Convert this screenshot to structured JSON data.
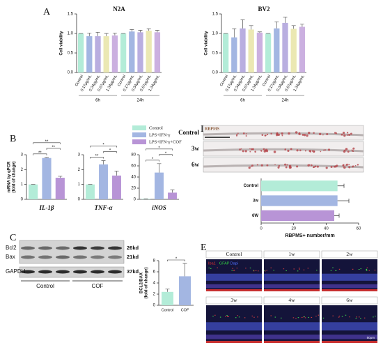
{
  "panels": [
    "A",
    "B",
    "C",
    "D",
    "E"
  ],
  "panel_b_legend": {
    "categories": [
      "Control",
      "LPS+IFN-γ",
      "LPS+IFN-γ+COF"
    ],
    "colors": [
      "#b3ecd8",
      "#a3b6e2",
      "#b894d6"
    ]
  },
  "blot": {
    "bands": [
      "Bcl2",
      "Bax",
      "GAPDH"
    ],
    "sizes": [
      "26kd",
      "21kd",
      "37kd"
    ],
    "groups": [
      "Control",
      "COF"
    ]
  },
  "retina": {
    "stain": "RBPMS",
    "rows": [
      "Control",
      "3w",
      "6w"
    ]
  },
  "micrographs": {
    "tiles": [
      "Control",
      "1w",
      "2w",
      "3w",
      "4w",
      "6w"
    ],
    "stains": [
      "Iba1",
      "GFAP",
      "Dapi"
    ],
    "stain_colors": [
      "#e03030",
      "#30d040",
      "#5070ff"
    ],
    "scale": "50μm"
  },
  "chart_data": [
    {
      "type": "bar",
      "title": "N2A",
      "ylabel": [
        "Cell viability"
      ],
      "categories": [
        "Control",
        "0.17μg/mL",
        "0.34μg/mL",
        "0.67μg/mL",
        "1.34μg/mL",
        "Control",
        "0.17μg/mL",
        "0.34μg/mL",
        "0.67μg/mL",
        "1.34μg/mL"
      ],
      "groups": [
        "6h",
        "24h"
      ],
      "values": [
        1.0,
        0.93,
        0.93,
        0.93,
        0.95,
        1.0,
        1.05,
        1.03,
        1.07,
        1.03
      ],
      "errors": [
        0,
        0.08,
        0.1,
        0.07,
        0.06,
        0,
        0.05,
        0.05,
        0.05,
        0.05
      ],
      "colors": [
        "#b3ecd8",
        "#a3b6e2",
        "#b9aee0",
        "#ebe8b3",
        "#cbb0e0",
        "#b3ecd8",
        "#a3b6e2",
        "#b9aee0",
        "#ebe8b3",
        "#cbb0e0"
      ],
      "ylim": [
        0,
        1.5
      ],
      "yticks": [
        {
          "value": 0,
          "label": "0.0"
        },
        0.5,
        {
          "value": 1,
          "label": "1.0"
        },
        1.5
      ]
    },
    {
      "type": "bar",
      "title": "BV2",
      "ylabel": [
        "Cell viability"
      ],
      "categories": [
        "Control",
        "0.17μg/mL",
        "0.34μg/mL",
        "0.67μg/mL",
        "1.34μg/mL",
        "Control",
        "0.17μg/mL",
        "0.34μg/mL",
        "0.67μg/mL",
        "1.34μg/mL"
      ],
      "groups": [
        "6h",
        "24h"
      ],
      "values": [
        1.0,
        0.9,
        1.13,
        1.1,
        1.02,
        1.0,
        1.13,
        1.27,
        1.12,
        1.17
      ],
      "errors": [
        0,
        0.22,
        0.22,
        0.1,
        0.02,
        0,
        0.17,
        0.15,
        0.08,
        0.07
      ],
      "colors": [
        "#b3ecd8",
        "#a3b6e2",
        "#b9aee0",
        "#ebe8b3",
        "#cbb0e0",
        "#b3ecd8",
        "#a3b6e2",
        "#b9aee0",
        "#ebe8b3",
        "#cbb0e0"
      ],
      "ylim": [
        0,
        1.5
      ],
      "yticks": [
        {
          "value": 0,
          "label": "0.0"
        },
        0.5,
        {
          "value": 1,
          "label": "1.0"
        },
        1.5
      ]
    },
    {
      "type": "bar",
      "xlabel": "IL-1β",
      "ylabel": [
        "mRNA by qPCR",
        "(fold of change)"
      ],
      "values": [
        1.0,
        2.78,
        1.45
      ],
      "errors": [
        0,
        0.04,
        0.1
      ],
      "ylim": [
        0,
        3
      ],
      "yticks": [
        0,
        1,
        2,
        3
      ],
      "brackets": [
        {
          "from": 0,
          "to": 1,
          "label": "**"
        },
        {
          "from": 1,
          "to": 2,
          "label": "**"
        },
        {
          "from": 0,
          "to": 2,
          "label": "**"
        }
      ]
    },
    {
      "type": "bar",
      "xlabel": "TNF-α",
      "values": [
        1.0,
        2.35,
        1.6
      ],
      "errors": [
        0,
        0.25,
        0.3
      ],
      "ylim": [
        0,
        3
      ],
      "yticks": [
        0,
        1,
        2,
        3
      ],
      "brackets": [
        {
          "from": 0,
          "to": 1,
          "label": "**"
        },
        {
          "from": 1,
          "to": 2,
          "label": "*"
        },
        {
          "from": 0,
          "to": 2,
          "label": "*"
        }
      ]
    },
    {
      "type": "bar",
      "xlabel": "iNOS",
      "values": [
        1,
        48,
        12
      ],
      "errors": [
        0,
        16,
        5
      ],
      "ylim": [
        0,
        80
      ],
      "yticks": [
        0,
        20,
        40,
        60,
        80
      ],
      "brackets": [
        {
          "from": 0,
          "to": 1,
          "label": "*"
        },
        {
          "from": 1,
          "to": 2,
          "label": "*"
        },
        {
          "from": 0,
          "to": 2,
          "label": "*"
        }
      ]
    },
    {
      "type": "bar",
      "ylabel": [
        "BCL2/BAX",
        "(fold of change)"
      ],
      "categories": [
        "Control",
        "COF"
      ],
      "values": [
        2.4,
        5.2
      ],
      "errors": [
        0.5,
        2.3
      ],
      "colors": [
        "#b3ecd8",
        "#a3b6e2"
      ],
      "ylim": [
        0,
        8
      ],
      "yticks": [
        0,
        2,
        4,
        6,
        8
      ],
      "brackets": [
        {
          "from": 0,
          "to": 1,
          "label": "*"
        }
      ]
    },
    {
      "type": "barh",
      "xlabel": "RBPMS+ number/mm",
      "categories": [
        "Control",
        "3w",
        "6W"
      ],
      "values": [
        47,
        47,
        45
      ],
      "errors": [
        4,
        7,
        3
      ],
      "colors": [
        "#b3ecd8",
        "#a3b6e2",
        "#b894d6"
      ],
      "xlim": [
        0,
        60
      ],
      "xticks": [
        0,
        20,
        40,
        60
      ]
    }
  ]
}
